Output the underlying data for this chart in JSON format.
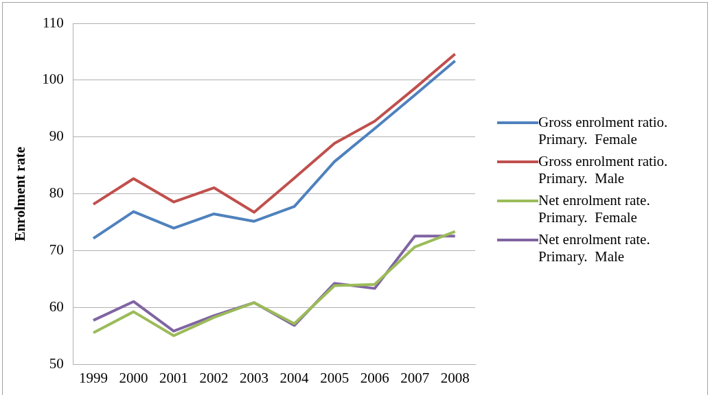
{
  "chart_data": {
    "type": "line",
    "ylabel": "Enrolment rate",
    "categories": [
      "1999",
      "2000",
      "2001",
      "2002",
      "2003",
      "2004",
      "2005",
      "2006",
      "2007",
      "2008"
    ],
    "series": [
      {
        "name": "Gross enrolment ratio. Primary.  Female",
        "color": "#4f81bd",
        "values": [
          72.2,
          76.9,
          74.0,
          76.5,
          75.2,
          77.8,
          85.7,
          91.5,
          97.4,
          103.4
        ]
      },
      {
        "name": "Gross enrolment ratio. Primary.  Male",
        "color": "#c0504d",
        "values": [
          78.2,
          82.7,
          78.6,
          81.1,
          76.8,
          82.8,
          88.9,
          92.8,
          98.6,
          104.6
        ]
      },
      {
        "name": "Net enrolment rate. Primary.  Female",
        "color": "#9bbb59",
        "values": [
          55.6,
          59.3,
          55.1,
          58.3,
          60.9,
          57.2,
          63.9,
          64.1,
          70.7,
          73.4
        ]
      },
      {
        "name": "Net enrolment rate. Primary.  Male",
        "color": "#8064a2",
        "values": [
          57.8,
          61.1,
          55.9,
          58.6,
          60.9,
          56.9,
          64.3,
          63.4,
          72.6,
          72.6
        ]
      }
    ],
    "ylim": [
      50,
      110
    ],
    "yticks": [
      50,
      60,
      70,
      80,
      90,
      100,
      110
    ],
    "grid": "y",
    "legend": "right",
    "marker": "none"
  }
}
